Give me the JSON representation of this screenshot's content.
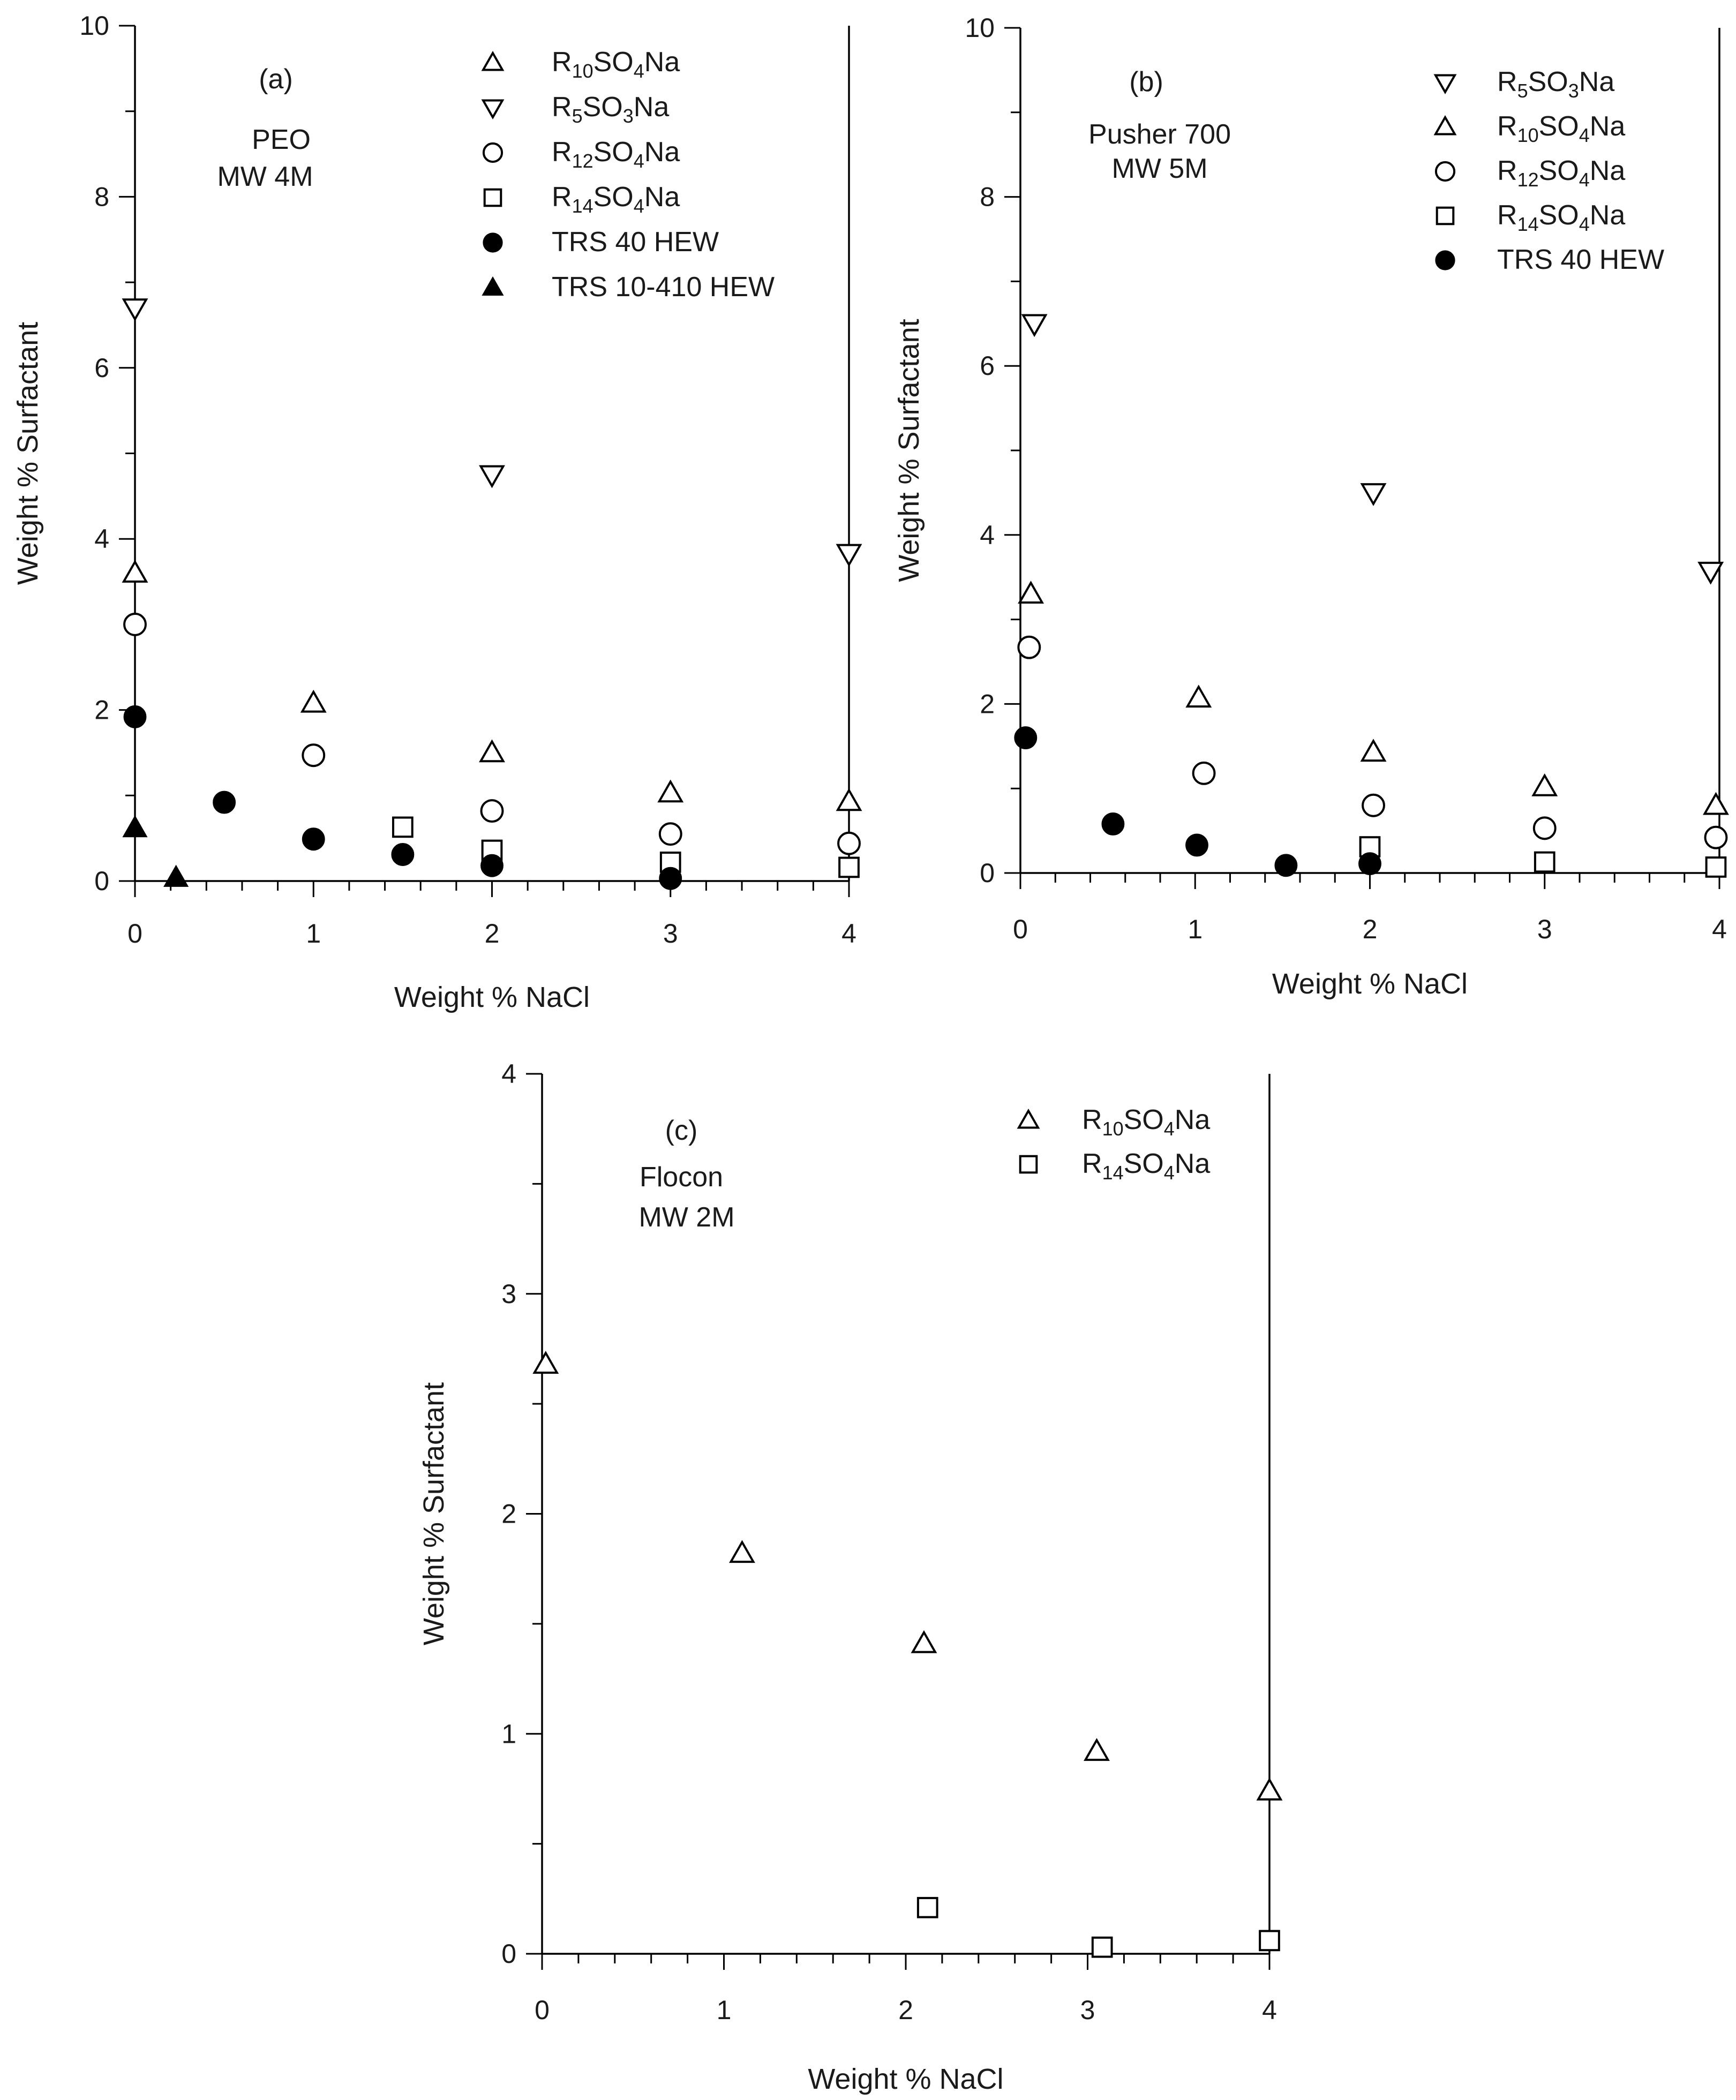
{
  "chart_data": [
    {
      "type": "scatter",
      "panel": "a",
      "annotations": [
        "(a)",
        "PEO",
        "MW 4M"
      ],
      "xlabel": "Weight % NaCl",
      "ylabel": "Weight % Surfactant",
      "xlim": [
        0,
        4
      ],
      "ylim": [
        0,
        10
      ],
      "xticks": [
        "0",
        "1",
        "2",
        "3",
        "4"
      ],
      "yticks": [
        "0",
        "2",
        "4",
        "6",
        "8",
        "10"
      ],
      "legend_position": "top-right",
      "series": [
        {
          "legend": {
            "prefix": "R",
            "sub1": "10",
            "mid": "SO",
            "sub2": "4",
            "suffix": "Na"
          },
          "marker": "triangle-up",
          "filled": false,
          "x": [
            0,
            1,
            2,
            3,
            4
          ],
          "y": [
            3.6,
            2.08,
            1.5,
            1.03,
            0.93
          ]
        },
        {
          "legend": {
            "prefix": "R",
            "sub1": "5",
            "mid": "SO",
            "sub2": "3",
            "suffix": "Na"
          },
          "marker": "triangle-down",
          "filled": false,
          "x": [
            0,
            2,
            4
          ],
          "y": [
            6.7,
            4.75,
            3.83
          ]
        },
        {
          "legend": {
            "prefix": "R",
            "sub1": "12",
            "mid": "SO",
            "sub2": "4",
            "suffix": "Na"
          },
          "marker": "circle",
          "filled": false,
          "x": [
            0,
            1,
            2,
            3,
            4
          ],
          "y": [
            3.0,
            1.47,
            0.82,
            0.55,
            0.44
          ]
        },
        {
          "legend": {
            "prefix": "R",
            "sub1": "14",
            "mid": "SO",
            "sub2": "4",
            "suffix": "Na"
          },
          "marker": "square",
          "filled": false,
          "x": [
            1.5,
            2,
            3,
            4
          ],
          "y": [
            0.63,
            0.36,
            0.22,
            0.16
          ]
        },
        {
          "legend": {
            "prefix": "TRS 40 HEW",
            "sub1": "",
            "mid": "",
            "sub2": "",
            "suffix": ""
          },
          "marker": "circle",
          "filled": true,
          "x": [
            0,
            0.5,
            1,
            1.5,
            2,
            3
          ],
          "y": [
            1.92,
            0.92,
            0.49,
            0.31,
            0.18,
            0.03
          ]
        },
        {
          "legend": {
            "prefix": "TRS 10-410 HEW",
            "sub1": "",
            "mid": "",
            "sub2": "",
            "suffix": ""
          },
          "marker": "triangle-up",
          "filled": true,
          "x": [
            0,
            0.23
          ],
          "y": [
            0.62,
            0.04
          ]
        }
      ]
    },
    {
      "type": "scatter",
      "panel": "b",
      "annotations": [
        "(b)",
        "Pusher 700",
        "MW 5M"
      ],
      "xlabel": "Weight % NaCl",
      "ylabel": "Weight % Surfactant",
      "xlim": [
        0,
        4
      ],
      "ylim": [
        0,
        10
      ],
      "xticks": [
        "0",
        "1",
        "2",
        "3",
        "4"
      ],
      "yticks": [
        "0",
        "2",
        "4",
        "6",
        "8",
        "10"
      ],
      "legend_position": "top-right",
      "series": [
        {
          "legend": {
            "prefix": "R",
            "sub1": "5",
            "mid": "SO",
            "sub2": "3",
            "suffix": "Na"
          },
          "marker": "triangle-down",
          "filled": false,
          "x": [
            0.08,
            2.02,
            3.95
          ],
          "y": [
            6.5,
            4.5,
            3.57
          ]
        },
        {
          "legend": {
            "prefix": "R",
            "sub1": "10",
            "mid": "SO",
            "sub2": "4",
            "suffix": "Na"
          },
          "marker": "triangle-up",
          "filled": false,
          "x": [
            0.06,
            1.02,
            2.02,
            3.0,
            3.98
          ],
          "y": [
            3.3,
            2.07,
            1.43,
            1.02,
            0.8
          ]
        },
        {
          "legend": {
            "prefix": "R",
            "sub1": "12",
            "mid": "SO",
            "sub2": "4",
            "suffix": "Na"
          },
          "marker": "circle",
          "filled": false,
          "x": [
            0.05,
            1.05,
            2.02,
            3.0,
            3.98
          ],
          "y": [
            2.67,
            1.18,
            0.8,
            0.53,
            0.42
          ]
        },
        {
          "legend": {
            "prefix": "R",
            "sub1": "14",
            "mid": "SO",
            "sub2": "4",
            "suffix": "Na"
          },
          "marker": "square",
          "filled": false,
          "x": [
            2.0,
            3.0,
            3.98
          ],
          "y": [
            0.31,
            0.13,
            0.07
          ]
        },
        {
          "legend": {
            "prefix": "TRS 40 HEW",
            "sub1": "",
            "mid": "",
            "sub2": "",
            "suffix": ""
          },
          "marker": "circle",
          "filled": true,
          "x": [
            0.03,
            0.53,
            1.01,
            1.52,
            2.0
          ],
          "y": [
            1.6,
            0.58,
            0.33,
            0.09,
            0.11
          ]
        }
      ]
    },
    {
      "type": "scatter",
      "panel": "c",
      "annotations": [
        "(c)",
        "Flocon",
        "MW 2M"
      ],
      "xlabel": "Weight % NaCl",
      "ylabel": "Weight % Surfactant",
      "xlim": [
        0,
        4
      ],
      "ylim": [
        0,
        4
      ],
      "xticks": [
        "0",
        "1",
        "2",
        "3",
        "4"
      ],
      "yticks": [
        "0",
        "1",
        "2",
        "3",
        "4"
      ],
      "legend_position": "top-right",
      "series": [
        {
          "legend": {
            "prefix": "R",
            "sub1": "10",
            "mid": "SO",
            "sub2": "4",
            "suffix": "Na"
          },
          "marker": "triangle-up",
          "filled": false,
          "x": [
            0.02,
            1.1,
            2.1,
            3.05,
            4.0
          ],
          "y": [
            2.68,
            1.82,
            1.41,
            0.92,
            0.74
          ]
        },
        {
          "legend": {
            "prefix": "R",
            "sub1": "14",
            "mid": "SO",
            "sub2": "4",
            "suffix": "Na"
          },
          "marker": "square",
          "filled": false,
          "x": [
            2.12,
            3.08,
            4.0
          ],
          "y": [
            0.21,
            0.03,
            0.06
          ]
        }
      ]
    }
  ]
}
